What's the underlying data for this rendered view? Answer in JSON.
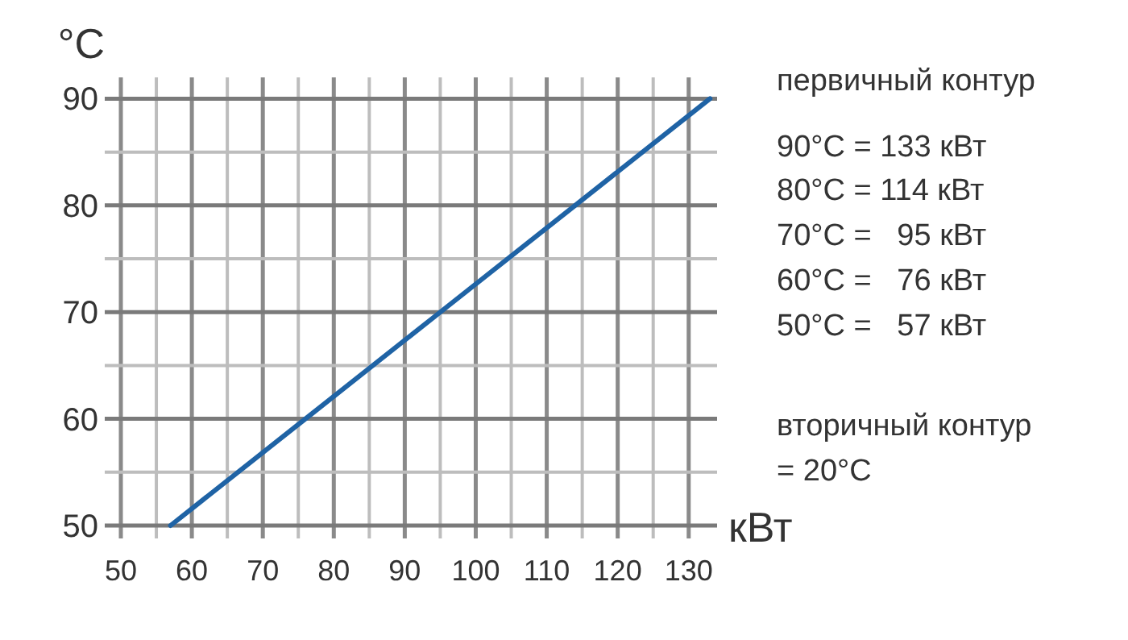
{
  "chart_data": {
    "type": "line",
    "ylabel": "°C",
    "xlabel": "кВт",
    "x": [
      57,
      76,
      95,
      114,
      133
    ],
    "series": [
      {
        "color": "#1f63a5",
        "values": [
          50,
          60,
          70,
          80,
          90
        ]
      }
    ],
    "xlim": [
      50,
      134
    ],
    "ylim": [
      50,
      92
    ],
    "xticks": [
      50,
      {
        "value": 55,
        "label": null
      },
      60,
      {
        "value": 65,
        "label": null
      },
      70,
      {
        "value": 75,
        "label": null
      },
      80,
      {
        "value": 85,
        "label": null
      },
      90,
      {
        "value": 95,
        "label": null
      },
      100,
      {
        "value": 105,
        "label": null
      },
      110,
      {
        "value": 115,
        "label": null
      },
      120,
      {
        "value": 125,
        "label": null
      },
      130
    ],
    "yticks": [
      50,
      {
        "value": 55,
        "label": null
      },
      60,
      {
        "value": 65,
        "label": null
      },
      70,
      {
        "value": 75,
        "label": null
      },
      80,
      {
        "value": 85,
        "label": null
      },
      90
    ],
    "grid": true,
    "marker": "none",
    "line_style": "solid",
    "annotations": [
      "первичный контур",
      "90°C = 133 кВт",
      "80°C = 114 кВт",
      "70°C =   95 кВт",
      "60°C =   76 кВт",
      "50°C =   57 кВт",
      "вторичный контур",
      "= 20°C"
    ]
  }
}
